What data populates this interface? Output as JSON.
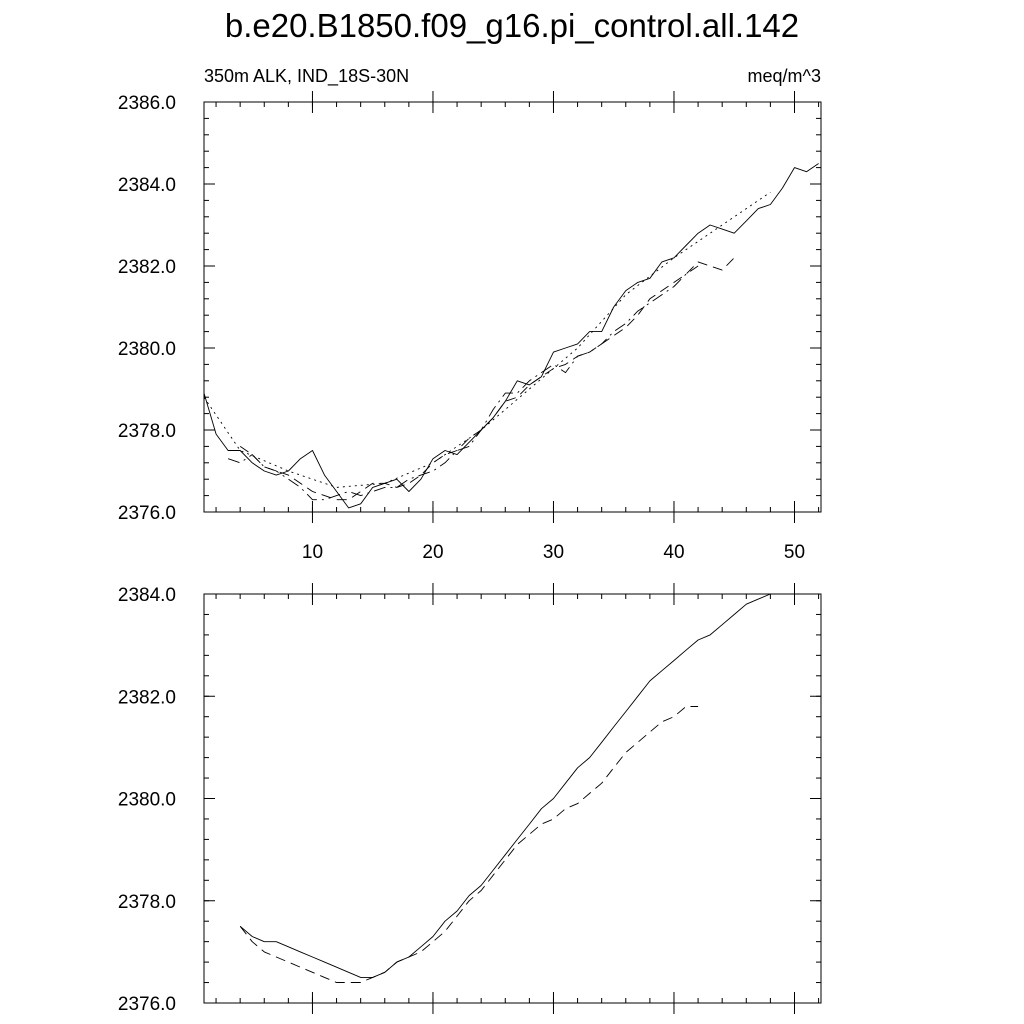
{
  "title": "b.e20.B1850.f09_g16.pi_control.all.142",
  "left_string": "350m ALK, IND_18S-30N",
  "right_string": "meq/m^3",
  "chart_data": [
    {
      "type": "line",
      "xlim": [
        1,
        52.2
      ],
      "ylim": [
        2376.0,
        2386.0
      ],
      "x_ticks": [
        10,
        20,
        30,
        40,
        50
      ],
      "y_ticks": [
        2376.0,
        2378.0,
        2380.0,
        2382.0,
        2384.0,
        2386.0
      ],
      "y_tick_labels": [
        "2376.0",
        "2378.0",
        "2380.0",
        "2382.0",
        "2384.0",
        "2386.0"
      ],
      "x_tick_labels": [
        "10",
        "20",
        "30",
        "40",
        "50"
      ],
      "grid": false,
      "series": [
        {
          "style": "solid",
          "x": [
            1,
            2,
            3,
            4,
            5,
            6,
            7,
            8,
            9,
            10,
            11,
            12,
            13,
            14,
            15,
            16,
            17,
            18,
            19,
            20,
            21,
            22,
            23,
            24,
            25,
            26,
            27,
            28,
            29,
            30,
            31,
            32,
            33,
            34,
            35,
            36,
            37,
            38,
            39,
            40,
            41,
            42,
            43,
            44,
            45,
            46,
            47,
            48,
            49,
            50,
            51,
            52
          ],
          "y": [
            2378.9,
            2377.9,
            2377.5,
            2377.5,
            2377.2,
            2377.0,
            2376.9,
            2377.0,
            2377.3,
            2377.5,
            2376.9,
            2376.5,
            2376.1,
            2376.2,
            2376.6,
            2376.7,
            2376.8,
            2376.5,
            2376.8,
            2377.3,
            2377.5,
            2377.4,
            2377.7,
            2378.0,
            2378.3,
            2378.7,
            2379.2,
            2379.1,
            2379.3,
            2379.9,
            2380.0,
            2380.1,
            2380.4,
            2380.4,
            2381.0,
            2381.4,
            2381.6,
            2381.7,
            2382.1,
            2382.2,
            2382.5,
            2382.8,
            2383.0,
            2382.9,
            2382.8,
            2383.1,
            2383.4,
            2383.5,
            2383.9,
            2384.4,
            2384.3,
            2384.5
          ]
        },
        {
          "style": "dashed",
          "x": [
            4,
            5,
            6,
            7,
            8,
            9,
            10,
            11,
            12,
            13,
            14,
            15,
            16,
            17,
            18,
            19,
            20,
            21,
            22,
            23,
            24,
            25,
            26,
            27,
            28,
            29,
            30,
            31,
            32,
            33,
            34,
            35,
            36,
            37,
            38,
            39,
            40,
            41,
            42,
            43,
            44,
            45
          ],
          "y": [
            2377.6,
            2377.4,
            2377.1,
            2377.0,
            2376.9,
            2376.7,
            2376.5,
            2376.4,
            2376.3,
            2376.3,
            2376.5,
            2376.7,
            2376.7,
            2376.6,
            2376.7,
            2376.9,
            2377.2,
            2377.4,
            2377.5,
            2377.8,
            2378.0,
            2378.3,
            2378.7,
            2378.8,
            2379.1,
            2379.3,
            2379.5,
            2379.6,
            2379.8,
            2379.9,
            2380.1,
            2380.3,
            2380.5,
            2380.8,
            2381.2,
            2381.4,
            2381.6,
            2381.8,
            2382.1,
            2382.0,
            2381.9,
            2382.2
          ]
        },
        {
          "style": "dashdot",
          "x": [
            3,
            4,
            5,
            6,
            7,
            8,
            9,
            10,
            11,
            12,
            13,
            14,
            15,
            16,
            17,
            18,
            19,
            20,
            21,
            22,
            23,
            24,
            25,
            26,
            27,
            28,
            29,
            30,
            31,
            32,
            33,
            34,
            35,
            36,
            37,
            38,
            39,
            40,
            41,
            42
          ],
          "y": [
            2377.3,
            2377.2,
            2377.4,
            2377.1,
            2377.0,
            2376.8,
            2376.6,
            2376.3,
            2376.3,
            2376.4,
            2376.5,
            2376.4,
            2376.5,
            2376.6,
            2376.6,
            2376.8,
            2376.9,
            2377.0,
            2377.2,
            2377.5,
            2377.6,
            2378.0,
            2378.5,
            2378.9,
            2378.9,
            2379.2,
            2379.4,
            2379.6,
            2379.4,
            2379.8,
            2379.9,
            2380.1,
            2380.4,
            2380.6,
            2380.9,
            2381.1,
            2381.3,
            2381.5,
            2381.8,
            2382.0
          ]
        },
        {
          "style": "dotted",
          "x": [
            1,
            4,
            8,
            12,
            16,
            20,
            24,
            28,
            32,
            36,
            40,
            44,
            48
          ],
          "y": [
            2378.8,
            2377.5,
            2377.0,
            2376.6,
            2376.7,
            2377.2,
            2378.0,
            2379.0,
            2380.0,
            2381.3,
            2382.2,
            2383.0,
            2383.8
          ]
        }
      ]
    },
    {
      "type": "line",
      "xlim": [
        1,
        52.2
      ],
      "ylim": [
        2376.0,
        2384.0
      ],
      "x_ticks": [
        10,
        20,
        30,
        40,
        50
      ],
      "y_ticks": [
        2376.0,
        2378.0,
        2380.0,
        2382.0,
        2384.0
      ],
      "y_tick_labels": [
        "2376.0",
        "2378.0",
        "2380.0",
        "2382.0",
        "2384.0"
      ],
      "grid": false,
      "series": [
        {
          "style": "solid",
          "x": [
            4,
            5,
            6,
            7,
            8,
            9,
            10,
            11,
            12,
            13,
            14,
            15,
            16,
            17,
            18,
            19,
            20,
            21,
            22,
            23,
            24,
            25,
            26,
            27,
            28,
            29,
            30,
            31,
            32,
            33,
            34,
            35,
            36,
            37,
            38,
            39,
            40,
            41,
            42,
            43,
            44,
            45,
            46,
            47,
            48
          ],
          "y": [
            2377.5,
            2377.3,
            2377.2,
            2377.2,
            2377.1,
            2377.0,
            2376.9,
            2376.8,
            2376.7,
            2376.6,
            2376.5,
            2376.5,
            2376.6,
            2376.8,
            2376.9,
            2377.1,
            2377.3,
            2377.6,
            2377.8,
            2378.1,
            2378.3,
            2378.6,
            2378.9,
            2379.2,
            2379.5,
            2379.8,
            2380.0,
            2380.3,
            2380.6,
            2380.8,
            2381.1,
            2381.4,
            2381.7,
            2382.0,
            2382.3,
            2382.5,
            2382.7,
            2382.9,
            2383.1,
            2383.2,
            2383.4,
            2383.6,
            2383.8,
            2383.9,
            2384.0
          ]
        },
        {
          "style": "dashed",
          "x": [
            4,
            5,
            6,
            7,
            8,
            9,
            10,
            11,
            12,
            13,
            14,
            15,
            16,
            17,
            18,
            19,
            20,
            21,
            22,
            23,
            24,
            25,
            26,
            27,
            28,
            29,
            30,
            31,
            32,
            33,
            34,
            35,
            36,
            37,
            38,
            39,
            40,
            41,
            42
          ],
          "y": [
            2377.5,
            2377.2,
            2377.0,
            2376.9,
            2376.8,
            2376.7,
            2376.6,
            2376.5,
            2376.4,
            2376.4,
            2376.4,
            2376.5,
            2376.6,
            2376.8,
            2376.9,
            2377.0,
            2377.2,
            2377.4,
            2377.7,
            2378.0,
            2378.2,
            2378.5,
            2378.8,
            2379.1,
            2379.3,
            2379.5,
            2379.6,
            2379.8,
            2379.9,
            2380.1,
            2380.3,
            2380.6,
            2380.9,
            2381.1,
            2381.3,
            2381.5,
            2381.6,
            2381.8,
            2381.8
          ]
        }
      ]
    }
  ]
}
